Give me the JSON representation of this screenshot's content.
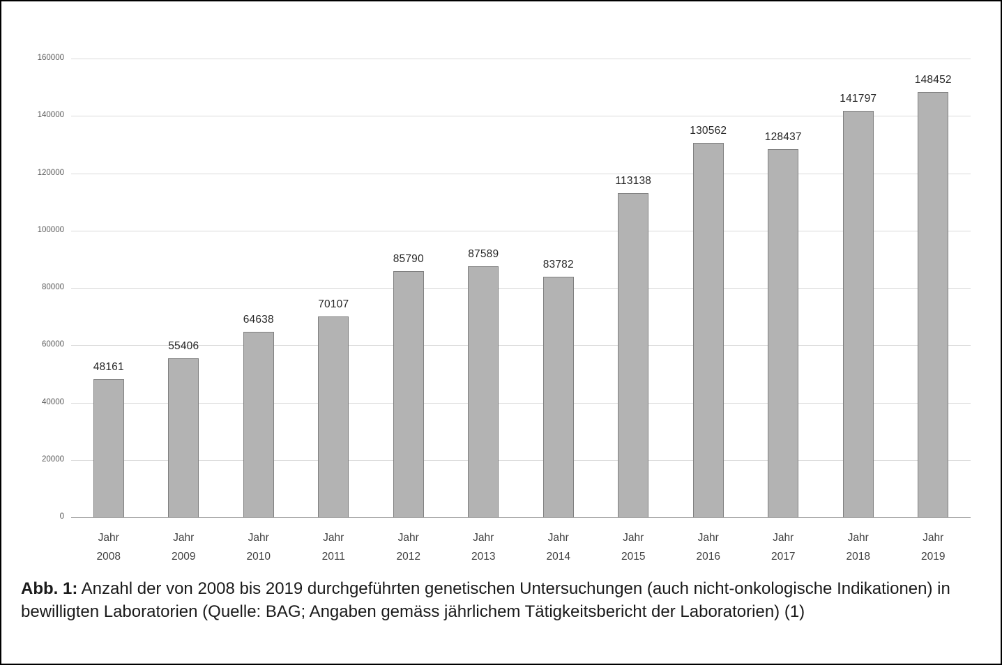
{
  "figure": {
    "caption_label": "Abb. 1:",
    "caption_text": "Anzahl der von 2008 bis 2019 durchgeführten genetischen Untersuchungen (auch nicht-onkologische Indikationen) in bewilligten Laboratorien (Quelle: BAG; Angaben gemäss jährlichem Tätigkeitsbericht der Laboratorien) (1)"
  },
  "chart_data": {
    "type": "bar",
    "title": "",
    "xlabel": "",
    "ylabel": "",
    "category_prefix": "Jahr",
    "categories": [
      "Jahr 2008",
      "Jahr 2009",
      "Jahr 2010",
      "Jahr 2011",
      "Jahr 2012",
      "Jahr 2013",
      "Jahr 2014",
      "Jahr 2015",
      "Jahr 2016",
      "Jahr 2017",
      "Jahr 2018",
      "Jahr 2019"
    ],
    "years": [
      "2008",
      "2009",
      "2010",
      "2011",
      "2012",
      "2013",
      "2014",
      "2015",
      "2016",
      "2017",
      "2018",
      "2019"
    ],
    "values": [
      48161,
      55406,
      64638,
      70107,
      85790,
      87589,
      83782,
      113138,
      130562,
      128437,
      141797,
      148452
    ],
    "ylim": [
      0,
      160000
    ],
    "ytick_step": 20000,
    "ytick_labels": [
      "0",
      "20000",
      "40000",
      "60000",
      "80000",
      "100000",
      "120000",
      "140000",
      "160000"
    ],
    "grid": true,
    "legend": "none",
    "bar_color": "#b3b3b3",
    "bar_border_color": "#7f7f7f",
    "value_labels_shown": true
  }
}
